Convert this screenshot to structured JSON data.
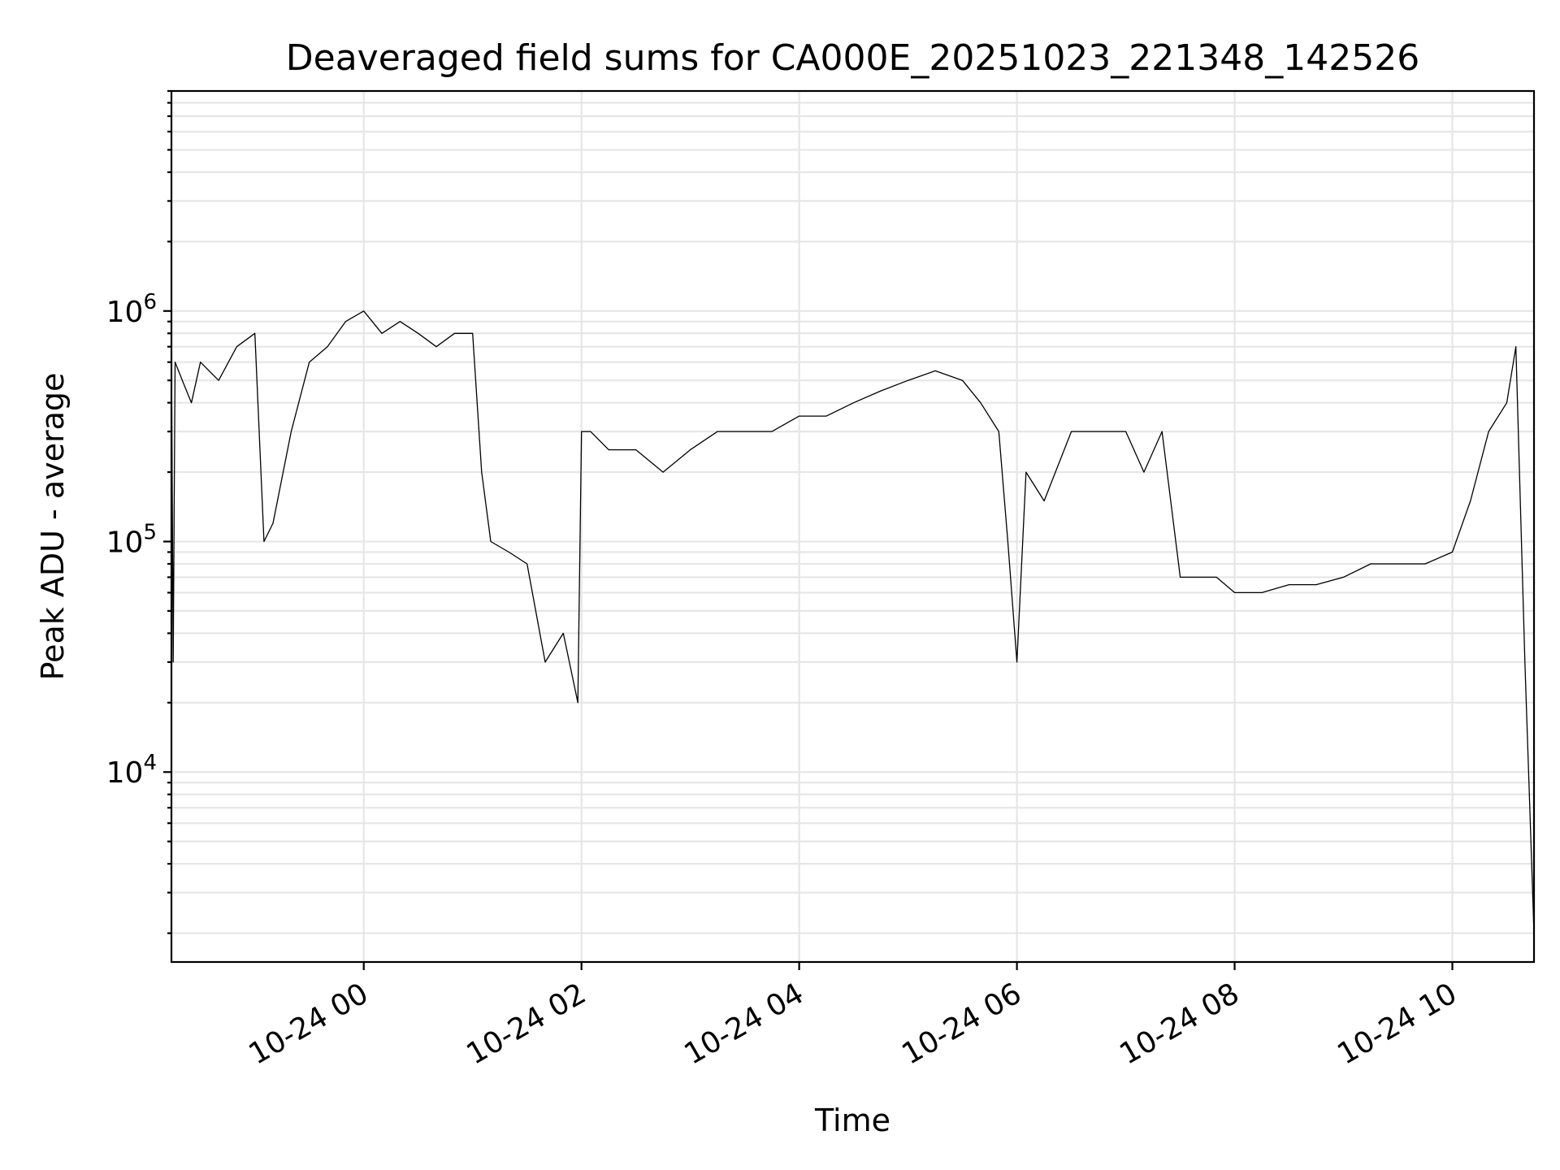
{
  "chart_data": {
    "type": "line",
    "title": "Deaveraged field sums for CA000E_20251023_221348_142526",
    "xlabel": "Time",
    "ylabel": "Peak ADU - average",
    "yscale": "log",
    "grid": true,
    "color": "#000000",
    "xlim": [
      "2025-10-23 22:14",
      "2025-10-24 10:45"
    ],
    "ylim": [
      1500,
      9000000
    ],
    "x_ticks": [
      {
        "value": "2025-10-24 00:00",
        "label": "10-24 00"
      },
      {
        "value": "2025-10-24 02:00",
        "label": "10-24 02"
      },
      {
        "value": "2025-10-24 04:00",
        "label": "10-24 04"
      },
      {
        "value": "2025-10-24 06:00",
        "label": "10-24 06"
      },
      {
        "value": "2025-10-24 08:00",
        "label": "10-24 08"
      },
      {
        "value": "2025-10-24 10:00",
        "label": "10-24 10"
      }
    ],
    "y_ticks": [
      {
        "value": 10000,
        "base": "10",
        "exp": "4"
      },
      {
        "value": 100000,
        "base": "10",
        "exp": "5"
      },
      {
        "value": 1000000,
        "base": "10",
        "exp": "6"
      }
    ],
    "series": [
      {
        "x": [
          "2025-10-23 22:14",
          "2025-10-23 22:15",
          "2025-10-23 22:16",
          "2025-10-23 22:20",
          "2025-10-23 22:25",
          "2025-10-23 22:30",
          "2025-10-23 22:40",
          "2025-10-23 22:50",
          "2025-10-23 23:00",
          "2025-10-23 23:05",
          "2025-10-23 23:10",
          "2025-10-23 23:20",
          "2025-10-23 23:30",
          "2025-10-23 23:40",
          "2025-10-23 23:50",
          "2025-10-24 00:00",
          "2025-10-24 00:10",
          "2025-10-24 00:20",
          "2025-10-24 00:30",
          "2025-10-24 00:40",
          "2025-10-24 00:50",
          "2025-10-24 01:00",
          "2025-10-24 01:05",
          "2025-10-24 01:10",
          "2025-10-24 01:20",
          "2025-10-24 01:30",
          "2025-10-24 01:40",
          "2025-10-24 01:50",
          "2025-10-24 01:58",
          "2025-10-24 02:00",
          "2025-10-24 02:05",
          "2025-10-24 02:15",
          "2025-10-24 02:30",
          "2025-10-24 02:45",
          "2025-10-24 03:00",
          "2025-10-24 03:15",
          "2025-10-24 03:30",
          "2025-10-24 03:45",
          "2025-10-24 04:00",
          "2025-10-24 04:15",
          "2025-10-24 04:30",
          "2025-10-24 04:45",
          "2025-10-24 05:00",
          "2025-10-24 05:15",
          "2025-10-24 05:30",
          "2025-10-24 05:40",
          "2025-10-24 05:50",
          "2025-10-24 05:55",
          "2025-10-24 06:00",
          "2025-10-24 06:05",
          "2025-10-24 06:15",
          "2025-10-24 06:30",
          "2025-10-24 06:45",
          "2025-10-24 07:00",
          "2025-10-24 07:10",
          "2025-10-24 07:20",
          "2025-10-24 07:30",
          "2025-10-24 07:40",
          "2025-10-24 07:50",
          "2025-10-24 08:00",
          "2025-10-24 08:15",
          "2025-10-24 08:30",
          "2025-10-24 08:45",
          "2025-10-24 09:00",
          "2025-10-24 09:15",
          "2025-10-24 09:30",
          "2025-10-24 09:45",
          "2025-10-24 10:00",
          "2025-10-24 10:10",
          "2025-10-24 10:20",
          "2025-10-24 10:30",
          "2025-10-24 10:35",
          "2025-10-24 10:40",
          "2025-10-24 10:45"
        ],
        "y": [
          700000,
          30000,
          600000,
          500000,
          400000,
          600000,
          500000,
          700000,
          800000,
          100000,
          120000,
          300000,
          600000,
          700000,
          900000,
          1000000,
          800000,
          900000,
          800000,
          700000,
          800000,
          800000,
          200000,
          100000,
          90000,
          80000,
          30000,
          40000,
          20000,
          300000,
          300000,
          250000,
          250000,
          200000,
          250000,
          300000,
          300000,
          300000,
          350000,
          350000,
          400000,
          450000,
          500000,
          550000,
          500000,
          400000,
          300000,
          100000,
          30000,
          200000,
          150000,
          300000,
          300000,
          300000,
          200000,
          300000,
          70000,
          70000,
          70000,
          60000,
          60000,
          65000,
          65000,
          70000,
          80000,
          80000,
          80000,
          90000,
          150000,
          300000,
          400000,
          700000,
          30000,
          2000
        ]
      }
    ]
  }
}
